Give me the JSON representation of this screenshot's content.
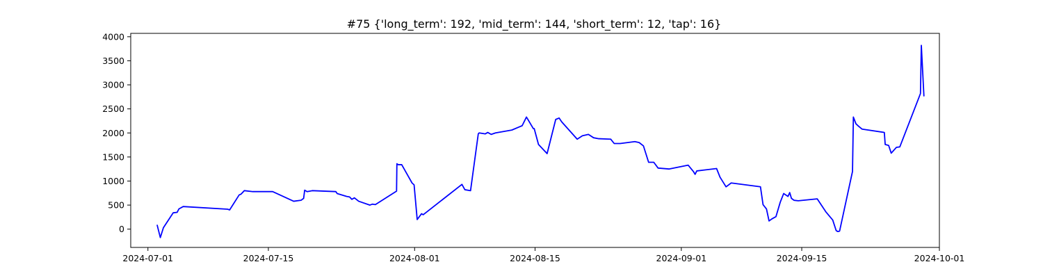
{
  "chart_data": {
    "type": "line",
    "title": "#75 {'long_term': 192, 'mid_term': 144, 'short_term': 12, 'tap': 16}",
    "xlabel": "",
    "ylabel": "",
    "xlim": [
      "2024-06-29",
      "2024-10-01"
    ],
    "ylim": [
      -380,
      4070
    ],
    "x_ticks": [
      "2024-07-01",
      "2024-07-15",
      "2024-08-01",
      "2024-08-15",
      "2024-09-01",
      "2024-09-15",
      "2024-10-01"
    ],
    "y_ticks": [
      0,
      500,
      1000,
      1500,
      2000,
      2500,
      3000,
      3500,
      4000
    ],
    "grid": false,
    "color": "#0000ff",
    "series": [
      {
        "x": [
          "2024-07-02T01:55",
          "2024-07-02T10:34",
          "2024-07-02T19:12",
          "2024-07-03T22:34",
          "2024-07-04T09:36",
          "2024-07-04T14:24",
          "2024-07-05T02:24",
          "2024-07-10T06:14",
          "2024-07-10T12:00",
          "2024-07-11T14:24",
          "2024-07-11T20:10",
          "2024-07-12T04:48",
          "2024-07-13T04:48",
          "2024-07-15T12:00",
          "2024-07-17T22:34",
          "2024-07-18T19:12",
          "2024-07-19T02:24",
          "2024-07-19T05:17",
          "2024-07-19T12:00",
          "2024-07-20T02:24",
          "2024-07-22T20:10",
          "2024-07-23T00:00",
          "2024-07-24T02:24",
          "2024-07-24T10:34",
          "2024-07-24T16:48",
          "2024-07-25T00:00",
          "2024-07-25T12:00",
          "2024-07-26T19:12",
          "2024-07-27T02:24",
          "2024-07-27T10:34",
          "2024-07-29T21:36",
          "2024-07-29T22:34",
          "2024-07-30T02:24",
          "2024-07-30T12:00",
          "2024-07-31T16:48",
          "2024-07-31T22:34",
          "2024-08-01T07:12",
          "2024-08-01T19:12",
          "2024-08-02T00:00",
          "2024-08-06T12:00",
          "2024-08-06T20:10",
          "2024-08-07T12:00",
          "2024-08-08T09:36",
          "2024-08-08T12:00",
          "2024-08-08T21:36",
          "2024-08-09T04:48",
          "2024-08-09T12:00",
          "2024-08-09T21:36",
          "2024-08-10T09:36",
          "2024-08-12T07:12",
          "2024-08-13T02:24",
          "2024-08-13T12:00",
          "2024-08-14T00:00",
          "2024-08-14T19:12",
          "2024-08-14T21:36",
          "2024-08-15T09:36",
          "2024-08-16T09:36",
          "2024-08-17T09:36",
          "2024-08-17T19:12",
          "2024-08-18T02:24",
          "2024-08-19T21:36",
          "2024-08-20T12:00",
          "2024-08-21T04:48",
          "2024-08-21T19:12",
          "2024-08-22T09:36",
          "2024-08-23T19:12",
          "2024-08-24T04:48",
          "2024-08-24T21:36",
          "2024-08-26T14:24",
          "2024-08-27T02:24",
          "2024-08-27T14:24",
          "2024-08-28T04:48",
          "2024-08-28T19:12",
          "2024-08-29T07:12",
          "2024-08-30T14:24",
          "2024-09-01T19:12",
          "2024-09-02T09:36",
          "2024-09-02T14:24",
          "2024-09-02T19:12",
          "2024-09-05T02:24",
          "2024-09-05T12:00",
          "2024-09-06T04:48",
          "2024-09-06T19:12",
          "2024-09-10T04:48",
          "2024-09-10T12:00",
          "2024-09-10T21:36",
          "2024-09-11T04:48",
          "2024-09-11T12:00",
          "2024-09-12T00:00",
          "2024-09-12T12:00",
          "2024-09-12T21:36",
          "2024-09-13T09:36",
          "2024-09-13T14:24",
          "2024-09-13T19:12",
          "2024-09-14T02:24",
          "2024-09-14T14:24",
          "2024-09-16T19:12",
          "2024-09-17T19:12",
          "2024-09-18T14:24",
          "2024-09-19T00:00",
          "2024-09-19T04:48",
          "2024-09-19T09:36",
          "2024-09-20T21:36",
          "2024-09-21T00:00",
          "2024-09-21T07:12",
          "2024-09-21T14:24",
          "2024-09-22T00:00",
          "2024-09-24T14:24",
          "2024-09-24T16:48",
          "2024-09-25T02:24",
          "2024-09-25T09:36",
          "2024-09-26T00:00",
          "2024-09-26T09:36",
          "2024-09-28T19:12",
          "2024-09-28T21:36",
          "2024-09-29T04:48"
        ],
        "values": [
          80,
          -175,
          30,
          340,
          350,
          420,
          470,
          415,
          400,
          710,
          730,
          800,
          780,
          780,
          580,
          600,
          640,
          810,
          780,
          800,
          780,
          740,
          680,
          670,
          620,
          650,
          580,
          500,
          520,
          510,
          790,
          1360,
          1340,
          1340,
          960,
          920,
          200,
          320,
          300,
          930,
          820,
          800,
          1980,
          2000,
          1990,
          1980,
          2010,
          1970,
          2000,
          2060,
          2120,
          2150,
          2330,
          2090,
          2090,
          1760,
          1570,
          2280,
          2310,
          2230,
          1870,
          1940,
          1970,
          1900,
          1880,
          1870,
          1780,
          1780,
          1820,
          1800,
          1730,
          1390,
          1390,
          1270,
          1250,
          1330,
          1200,
          1140,
          1210,
          1260,
          1080,
          880,
          960,
          880,
          510,
          420,
          170,
          210,
          260,
          560,
          740,
          680,
          760,
          640,
          600,
          590,
          630,
          360,
          190,
          -30,
          -50,
          -40,
          1200,
          2330,
          2190,
          2140,
          2080,
          2010,
          1760,
          1740,
          1580,
          1700,
          1710,
          2820,
          3820,
          2770
        ]
      }
    ]
  }
}
